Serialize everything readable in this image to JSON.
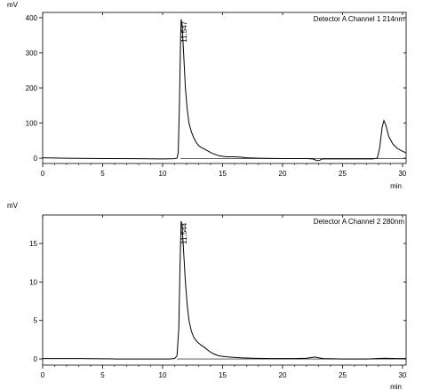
{
  "chart_data": [
    {
      "type": "line",
      "title": "",
      "legend": "Detector A Channel 1 214nm",
      "legend_position": "top-right",
      "ylabel": "mV",
      "xlabel": "min",
      "xlim": [
        0,
        30.3
      ],
      "ylim": [
        -15,
        415
      ],
      "xticks": [
        0,
        5,
        10,
        15,
        20,
        25,
        30
      ],
      "yticks": [
        0,
        100,
        200,
        300,
        400
      ],
      "peak_label": {
        "text": "11.547",
        "x": 11.547,
        "y": 395
      },
      "series": [
        {
          "points": [
            [
              0,
              1
            ],
            [
              2,
              0
            ],
            [
              5,
              -1
            ],
            [
              8,
              -1.5
            ],
            [
              10,
              -2
            ],
            [
              11,
              -1.5
            ],
            [
              11.2,
              0
            ],
            [
              11.3,
              15
            ],
            [
              11.4,
              150
            ],
            [
              11.5,
              340
            ],
            [
              11.547,
              395
            ],
            [
              11.62,
              385
            ],
            [
              11.75,
              300
            ],
            [
              11.9,
              200
            ],
            [
              12.05,
              140
            ],
            [
              12.2,
              100
            ],
            [
              12.4,
              75
            ],
            [
              12.6,
              58
            ],
            [
              12.8,
              45
            ],
            [
              13.0,
              36
            ],
            [
              13.2,
              31
            ],
            [
              13.5,
              26
            ],
            [
              13.8,
              20
            ],
            [
              14.2,
              13
            ],
            [
              14.7,
              7
            ],
            [
              15.3,
              4
            ],
            [
              16.0,
              4
            ],
            [
              16.5,
              3
            ],
            [
              17.0,
              1
            ],
            [
              18,
              0
            ],
            [
              20,
              -1
            ],
            [
              22,
              -1
            ],
            [
              22.5,
              -2
            ],
            [
              22.9,
              -7
            ],
            [
              23.1,
              -6
            ],
            [
              23.3,
              -2
            ],
            [
              24,
              -2
            ],
            [
              26,
              -2
            ],
            [
              27.5,
              -2
            ],
            [
              27.9,
              0
            ],
            [
              28.1,
              30
            ],
            [
              28.3,
              88
            ],
            [
              28.45,
              107
            ],
            [
              28.6,
              95
            ],
            [
              28.85,
              62
            ],
            [
              29.2,
              40
            ],
            [
              29.6,
              27
            ],
            [
              30.0,
              20
            ],
            [
              30.3,
              15
            ]
          ]
        }
      ],
      "baseline": [
        [
          11.5,
          -1
        ],
        [
          30.3,
          -1
        ]
      ]
    },
    {
      "type": "line",
      "title": "",
      "legend": "Detector A Channel 2 280nm",
      "legend_position": "top-right",
      "ylabel": "mV",
      "xlabel": "min",
      "xlim": [
        0,
        30.3
      ],
      "ylim": [
        -0.8,
        18.7
      ],
      "xticks": [
        0,
        5,
        10,
        15,
        20,
        25,
        30
      ],
      "yticks": [
        0,
        5,
        10,
        15
      ],
      "peak_label": {
        "text": "11.544",
        "x": 11.544,
        "y": 17.9
      },
      "series": [
        {
          "points": [
            [
              0,
              0.05
            ],
            [
              3,
              0.05
            ],
            [
              6,
              0.0
            ],
            [
              9,
              0.0
            ],
            [
              10.5,
              0.0
            ],
            [
              11.0,
              0.05
            ],
            [
              11.2,
              0.4
            ],
            [
              11.35,
              4.0
            ],
            [
              11.45,
              12.0
            ],
            [
              11.544,
              17.9
            ],
            [
              11.62,
              17.4
            ],
            [
              11.75,
              14.0
            ],
            [
              11.9,
              10.0
            ],
            [
              12.05,
              7.0
            ],
            [
              12.2,
              5.0
            ],
            [
              12.4,
              3.6
            ],
            [
              12.6,
              2.8
            ],
            [
              12.9,
              2.2
            ],
            [
              13.2,
              1.8
            ],
            [
              13.5,
              1.5
            ],
            [
              13.8,
              1.1
            ],
            [
              14.2,
              0.7
            ],
            [
              14.7,
              0.4
            ],
            [
              15.5,
              0.25
            ],
            [
              16.5,
              0.15
            ],
            [
              17.5,
              0.1
            ],
            [
              19,
              0.05
            ],
            [
              21,
              0.05
            ],
            [
              22,
              0.1
            ],
            [
              22.7,
              0.25
            ],
            [
              23.0,
              0.15
            ],
            [
              23.4,
              0.05
            ],
            [
              25,
              0.0
            ],
            [
              27,
              0.0
            ],
            [
              28.5,
              0.1
            ],
            [
              29.5,
              0.05
            ],
            [
              30.3,
              0.05
            ]
          ]
        }
      ],
      "baseline": [
        [
          11.2,
          0.0
        ],
        [
          30.3,
          0.0
        ]
      ]
    }
  ]
}
